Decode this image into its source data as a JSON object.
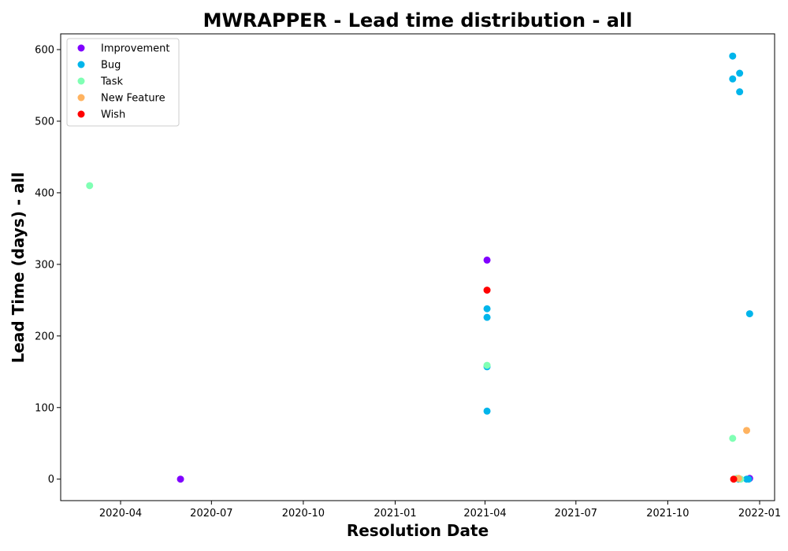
{
  "chart_data": {
    "type": "scatter",
    "title": "MWRAPPER - Lead time distribution - all",
    "xlabel": "Resolution Date",
    "ylabel": "Lead Time (days) - all",
    "xlim": [
      "2020-02-01",
      "2022-01-16"
    ],
    "ylim": [
      -30,
      622
    ],
    "x_ticks": [
      {
        "date": "2020-04-01",
        "label": "2020-04"
      },
      {
        "date": "2020-07-01",
        "label": "2020-07"
      },
      {
        "date": "2020-10-01",
        "label": "2020-10"
      },
      {
        "date": "2021-01-01",
        "label": "2021-01"
      },
      {
        "date": "2021-04-01",
        "label": "2021-04"
      },
      {
        "date": "2021-07-01",
        "label": "2021-07"
      },
      {
        "date": "2021-10-01",
        "label": "2021-10"
      },
      {
        "date": "2022-01-01",
        "label": "2022-01"
      }
    ],
    "y_ticks": [
      0,
      100,
      200,
      300,
      400,
      500,
      600
    ],
    "grid": false,
    "legend": {
      "position": "top-left"
    },
    "series": [
      {
        "name": "Improvement",
        "color": "#8000ff",
        "points": [
          {
            "x": "2020-05-31",
            "y": 0
          },
          {
            "x": "2021-04-03",
            "y": 306
          },
          {
            "x": "2021-12-22",
            "y": 1
          }
        ]
      },
      {
        "name": "Bug",
        "color": "#00b5eb",
        "points": [
          {
            "x": "2021-04-03",
            "y": 238
          },
          {
            "x": "2021-04-03",
            "y": 226
          },
          {
            "x": "2021-04-03",
            "y": 157
          },
          {
            "x": "2021-04-03",
            "y": 95
          },
          {
            "x": "2021-12-05",
            "y": 591
          },
          {
            "x": "2021-12-05",
            "y": 559
          },
          {
            "x": "2021-12-12",
            "y": 567
          },
          {
            "x": "2021-12-12",
            "y": 541
          },
          {
            "x": "2021-12-22",
            "y": 231
          },
          {
            "x": "2021-12-19",
            "y": 0
          },
          {
            "x": "2021-12-21",
            "y": 0
          },
          {
            "x": "2021-12-11",
            "y": 0
          }
        ]
      },
      {
        "name": "Task",
        "color": "#80ffb4",
        "points": [
          {
            "x": "2020-03-01",
            "y": 410
          },
          {
            "x": "2021-04-03",
            "y": 159
          },
          {
            "x": "2021-12-05",
            "y": 57
          },
          {
            "x": "2021-12-09",
            "y": 1
          },
          {
            "x": "2021-12-13",
            "y": 0
          }
        ]
      },
      {
        "name": "New Feature",
        "color": "#ffb360",
        "points": [
          {
            "x": "2021-12-19",
            "y": 68
          },
          {
            "x": "2021-12-11",
            "y": 1
          }
        ]
      },
      {
        "name": "Wish",
        "color": "#ff0000",
        "points": [
          {
            "x": "2021-04-03",
            "y": 264
          },
          {
            "x": "2021-12-06",
            "y": 0
          }
        ]
      }
    ]
  }
}
